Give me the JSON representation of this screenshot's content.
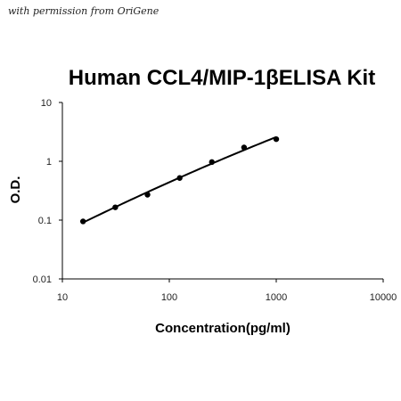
{
  "watermark": "with permission from OriGene",
  "chart_data": {
    "type": "scatter",
    "title": "Human CCL4/MIP-1βELISA Kit",
    "xlabel": "Concentration(pg/ml)",
    "ylabel": "O.D.",
    "x_scale": "log",
    "y_scale": "log",
    "xlim": [
      10,
      10000
    ],
    "ylim": [
      0.01,
      10
    ],
    "x_ticks": [
      "10",
      "100",
      "1000",
      "10000"
    ],
    "y_ticks": [
      "0.01",
      "0.1",
      "1",
      "10"
    ],
    "grid": false,
    "legend": "none",
    "series": [
      {
        "x": [
          15.6,
          31.25,
          62.5,
          125,
          250,
          500,
          1000
        ],
        "y": [
          0.095,
          0.165,
          0.27,
          0.52,
          0.97,
          1.72,
          2.38
        ],
        "marker": "circle",
        "trendline": "smooth",
        "color": "#000000"
      }
    ]
  }
}
